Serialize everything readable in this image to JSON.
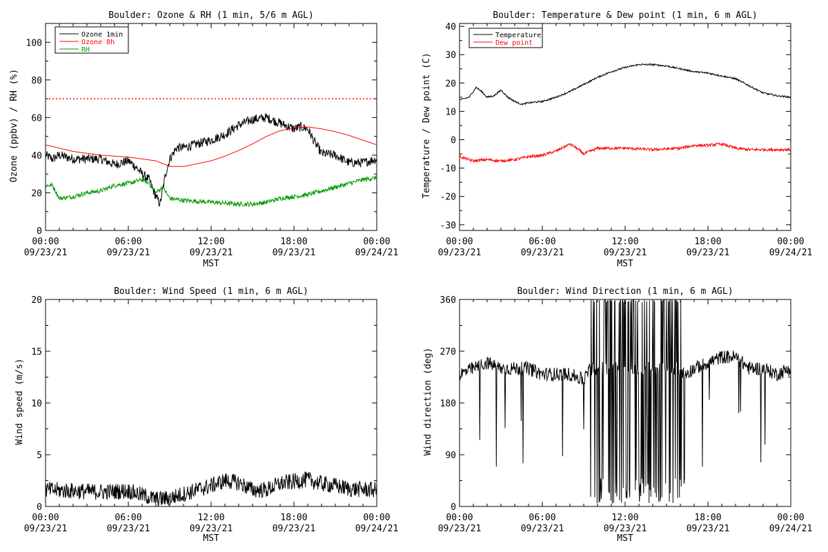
{
  "chart_data": [
    {
      "type": "line",
      "title": "Boulder: Ozone & RH (1 min, 5/6 m AGL)",
      "xlabel": "MST",
      "ylabel": "Ozone (ppbv) / RH (%)",
      "xlim": [
        "2021-09-23 00:00",
        "2021-09-24 00:00"
      ],
      "ylim": [
        0,
        110
      ],
      "yticks": [
        0,
        20,
        40,
        60,
        80,
        100
      ],
      "xticks": [
        {
          "time": "00:00",
          "date": "09/23/21",
          "hour": 0
        },
        {
          "time": "06:00",
          "date": "09/23/21",
          "hour": 6
        },
        {
          "time": "12:00",
          "date": "09/23/21",
          "hour": 12
        },
        {
          "time": "18:00",
          "date": "09/23/21",
          "hour": 18
        },
        {
          "time": "00:00",
          "date": "09/24/21",
          "hour": 24
        }
      ],
      "legend": {
        "placement": "top-left"
      },
      "reference_line": {
        "y": 70,
        "color": "#ff0000",
        "style": "dotted"
      },
      "series": [
        {
          "name": "Ozone 1min",
          "color": "#000000",
          "noise": 2.5,
          "points": [
            [
              0,
              40
            ],
            [
              0.5,
              38
            ],
            [
              1,
              40
            ],
            [
              2,
              38
            ],
            [
              3,
              38
            ],
            [
              4,
              38
            ],
            [
              5,
              35
            ],
            [
              6,
              37
            ],
            [
              6.5,
              34
            ],
            [
              7,
              30
            ],
            [
              7.5,
              27
            ],
            [
              8,
              18
            ],
            [
              8.3,
              14
            ],
            [
              8.7,
              30
            ],
            [
              9,
              38
            ],
            [
              9.5,
              44
            ],
            [
              10,
              44
            ],
            [
              11,
              46
            ],
            [
              12,
              48
            ],
            [
              13,
              51
            ],
            [
              14,
              56
            ],
            [
              15,
              59
            ],
            [
              16,
              60
            ],
            [
              17,
              57
            ],
            [
              18,
              54
            ],
            [
              18.5,
              55
            ],
            [
              19,
              54
            ],
            [
              19.5,
              47
            ],
            [
              20,
              41
            ],
            [
              21,
              40
            ],
            [
              22,
              36
            ],
            [
              23,
              36
            ],
            [
              24,
              38
            ]
          ]
        },
        {
          "name": "Ozone 8h",
          "color": "#ff0000",
          "noise": 0,
          "points": [
            [
              0,
              45.5
            ],
            [
              2,
              42
            ],
            [
              4,
              40
            ],
            [
              6,
              39
            ],
            [
              8,
              37
            ],
            [
              9,
              34
            ],
            [
              10,
              34
            ],
            [
              11,
              35.5
            ],
            [
              12,
              37
            ],
            [
              13,
              39.5
            ],
            [
              14,
              42.5
            ],
            [
              15,
              46
            ],
            [
              16,
              50
            ],
            [
              17,
              53
            ],
            [
              18,
              54.5
            ],
            [
              19,
              55
            ],
            [
              20,
              54
            ],
            [
              21,
              52.5
            ],
            [
              22,
              50.5
            ],
            [
              23,
              48
            ],
            [
              24,
              45.5
            ]
          ]
        },
        {
          "name": "RH",
          "color": "#009900",
          "noise": 1.2,
          "points": [
            [
              0,
              24
            ],
            [
              0.5,
              24
            ],
            [
              1,
              17
            ],
            [
              2,
              18
            ],
            [
              3,
              20
            ],
            [
              4,
              21
            ],
            [
              5,
              24
            ],
            [
              6,
              25
            ],
            [
              7,
              27
            ],
            [
              7.5,
              25
            ],
            [
              8,
              20
            ],
            [
              8.5,
              23
            ],
            [
              9,
              17
            ],
            [
              10,
              16
            ],
            [
              12,
              15
            ],
            [
              14,
              14
            ],
            [
              15,
              14
            ],
            [
              16,
              15
            ],
            [
              17,
              17
            ],
            [
              18,
              18
            ],
            [
              19,
              19
            ],
            [
              20,
              21
            ],
            [
              21,
              23
            ],
            [
              22,
              25
            ],
            [
              23,
              27
            ],
            [
              24,
              28
            ]
          ]
        }
      ]
    },
    {
      "type": "line",
      "title": "Boulder: Temperature & Dew point (1 min, 6 m AGL)",
      "xlabel": "MST",
      "ylabel": "Temperature / Dew point (C)",
      "xlim": [
        "2021-09-23 00:00",
        "2021-09-24 00:00"
      ],
      "ylim": [
        -32,
        41
      ],
      "yticks": [
        -30,
        -20,
        -10,
        0,
        10,
        20,
        30,
        40
      ],
      "xticks": [
        {
          "time": "00:00",
          "date": "09/23/21",
          "hour": 0
        },
        {
          "time": "06:00",
          "date": "09/23/21",
          "hour": 6
        },
        {
          "time": "12:00",
          "date": "09/23/21",
          "hour": 12
        },
        {
          "time": "18:00",
          "date": "09/23/21",
          "hour": 18
        },
        {
          "time": "00:00",
          "date": "09/24/21",
          "hour": 24
        }
      ],
      "legend": {
        "placement": "top-left"
      },
      "series": [
        {
          "name": "Temperature",
          "color": "#000000",
          "noise": 0.3,
          "points": [
            [
              0,
              14
            ],
            [
              0.7,
              15
            ],
            [
              1.2,
              18.5
            ],
            [
              1.6,
              17
            ],
            [
              2,
              15
            ],
            [
              2.5,
              15.5
            ],
            [
              3,
              17.5
            ],
            [
              3.5,
              15
            ],
            [
              4,
              13.5
            ],
            [
              4.5,
              12.5
            ],
            [
              5,
              13
            ],
            [
              6,
              13.5
            ],
            [
              7,
              15
            ],
            [
              8,
              17
            ],
            [
              9,
              19.5
            ],
            [
              10,
              22
            ],
            [
              11,
              24
            ],
            [
              12,
              25.5
            ],
            [
              13,
              26.5
            ],
            [
              14,
              26.5
            ],
            [
              15,
              26
            ],
            [
              16,
              25
            ],
            [
              17,
              24
            ],
            [
              18,
              23.5
            ],
            [
              19,
              22.5
            ],
            [
              20,
              21.5
            ],
            [
              21,
              19
            ],
            [
              22,
              16.5
            ],
            [
              23,
              15.5
            ],
            [
              24,
              15
            ]
          ]
        },
        {
          "name": "Dew point",
          "color": "#ff0000",
          "noise": 0.5,
          "points": [
            [
              0,
              -6
            ],
            [
              1,
              -7.5
            ],
            [
              2,
              -7
            ],
            [
              3,
              -7.5
            ],
            [
              4,
              -7
            ],
            [
              5,
              -6
            ],
            [
              6,
              -5.5
            ],
            [
              7,
              -4
            ],
            [
              8,
              -1.5
            ],
            [
              8.5,
              -3
            ],
            [
              9,
              -5
            ],
            [
              10,
              -3
            ],
            [
              12,
              -3
            ],
            [
              14,
              -3.5
            ],
            [
              16,
              -3
            ],
            [
              17,
              -2
            ],
            [
              18,
              -2
            ],
            [
              19,
              -1.5
            ],
            [
              20,
              -3
            ],
            [
              21,
              -3.5
            ],
            [
              22,
              -3.5
            ],
            [
              23,
              -3.5
            ],
            [
              24,
              -3.5
            ]
          ]
        }
      ]
    },
    {
      "type": "line",
      "title": "Boulder: Wind Speed (1 min, 6 m AGL)",
      "xlabel": "MST",
      "ylabel": "Wind speed (m/s)",
      "xlim": [
        "2021-09-23 00:00",
        "2021-09-24 00:00"
      ],
      "ylim": [
        0,
        20
      ],
      "yticks": [
        0,
        5,
        10,
        15,
        20
      ],
      "xticks": [
        {
          "time": "00:00",
          "date": "09/23/21",
          "hour": 0
        },
        {
          "time": "06:00",
          "date": "09/23/21",
          "hour": 6
        },
        {
          "time": "12:00",
          "date": "09/23/21",
          "hour": 12
        },
        {
          "time": "18:00",
          "date": "09/23/21",
          "hour": 18
        },
        {
          "time": "00:00",
          "date": "09/24/21",
          "hour": 24
        }
      ],
      "series": [
        {
          "name": "",
          "color": "#000000",
          "noise": 0.8,
          "floor": 0,
          "points": [
            [
              0,
              1.6
            ],
            [
              2,
              1.5
            ],
            [
              4,
              1.4
            ],
            [
              6,
              1.5
            ],
            [
              7,
              1.1
            ],
            [
              8,
              0.7
            ],
            [
              9,
              0.8
            ],
            [
              10,
              1.2
            ],
            [
              11,
              1.6
            ],
            [
              12,
              2.0
            ],
            [
              13,
              2.5
            ],
            [
              14,
              2.3
            ],
            [
              15,
              1.6
            ],
            [
              16,
              1.6
            ],
            [
              17,
              2.2
            ],
            [
              18,
              2.4
            ],
            [
              19,
              2.6
            ],
            [
              20,
              2.2
            ],
            [
              21,
              2.0
            ],
            [
              22,
              1.7
            ],
            [
              24,
              1.6
            ]
          ]
        }
      ]
    },
    {
      "type": "line",
      "title": "Boulder: Wind Direction (1 min, 6 m AGL)",
      "xlabel": "MST",
      "ylabel": "Wind direction (deg)",
      "xlim": [
        "2021-09-23 00:00",
        "2021-09-24 00:00"
      ],
      "ylim": [
        0,
        360
      ],
      "yticks": [
        0,
        90,
        180,
        270,
        360
      ],
      "xticks": [
        {
          "time": "00:00",
          "date": "09/23/21",
          "hour": 0
        },
        {
          "time": "06:00",
          "date": "09/23/21",
          "hour": 6
        },
        {
          "time": "12:00",
          "date": "09/23/21",
          "hour": 12
        },
        {
          "time": "18:00",
          "date": "09/23/21",
          "hour": 18
        },
        {
          "time": "00:00",
          "date": "09/24/21",
          "hour": 24
        }
      ],
      "series": [
        {
          "name": "",
          "color": "#000000",
          "noise": 12,
          "floor": 0,
          "ceiling": 360,
          "spikes": "wrap",
          "spike_window": [
            9.5,
            16.3
          ],
          "points": [
            [
              0,
              230
            ],
            [
              1,
              240
            ],
            [
              2,
              250
            ],
            [
              3,
              240
            ],
            [
              4,
              240
            ],
            [
              5,
              240
            ],
            [
              6,
              230
            ],
            [
              7,
              230
            ],
            [
              8,
              230
            ],
            [
              9,
              220
            ],
            [
              9.5,
              240
            ],
            [
              10,
              240
            ],
            [
              11,
              240
            ],
            [
              12,
              240
            ],
            [
              13,
              240
            ],
            [
              14,
              240
            ],
            [
              15,
              240
            ],
            [
              16,
              240
            ],
            [
              16.3,
              230
            ],
            [
              17,
              240
            ],
            [
              18,
              250
            ],
            [
              19,
              260
            ],
            [
              20,
              260
            ],
            [
              21,
              240
            ],
            [
              22,
              240
            ],
            [
              23,
              230
            ],
            [
              24,
              240
            ]
          ]
        }
      ]
    }
  ]
}
